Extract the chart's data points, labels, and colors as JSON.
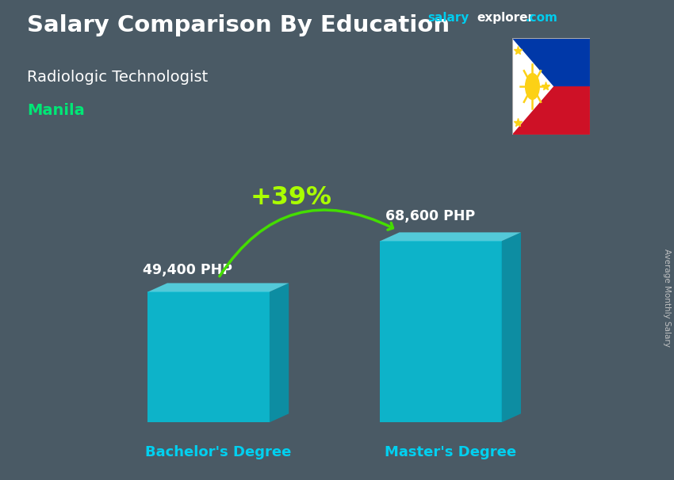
{
  "title": "Salary Comparison By Education",
  "subtitle": "Radiologic Technologist",
  "location": "Manila",
  "categories": [
    "Bachelor's Degree",
    "Master's Degree"
  ],
  "values": [
    49400,
    68600
  ],
  "value_labels": [
    "49,400 PHP",
    "68,600 PHP"
  ],
  "pct_change": "+39%",
  "bar_color_face": "#00c8e0",
  "bar_color_light": "#55daea",
  "bar_color_side": "#0099b0",
  "title_color": "#ffffff",
  "subtitle_color": "#ffffff",
  "location_color": "#00e676",
  "salary_color": "#ffffff",
  "pct_color": "#aaff00",
  "arrow_color": "#44dd00",
  "xlabel_color": "#00d0f0",
  "site_salary_color": "#00ccee",
  "site_explorer_color": "#ffffff",
  "background_color": "#4a5a65",
  "bar_alpha": 0.82,
  "ylim": [
    0,
    85000
  ],
  "figsize": [
    8.5,
    6.06
  ],
  "dpi": 100
}
